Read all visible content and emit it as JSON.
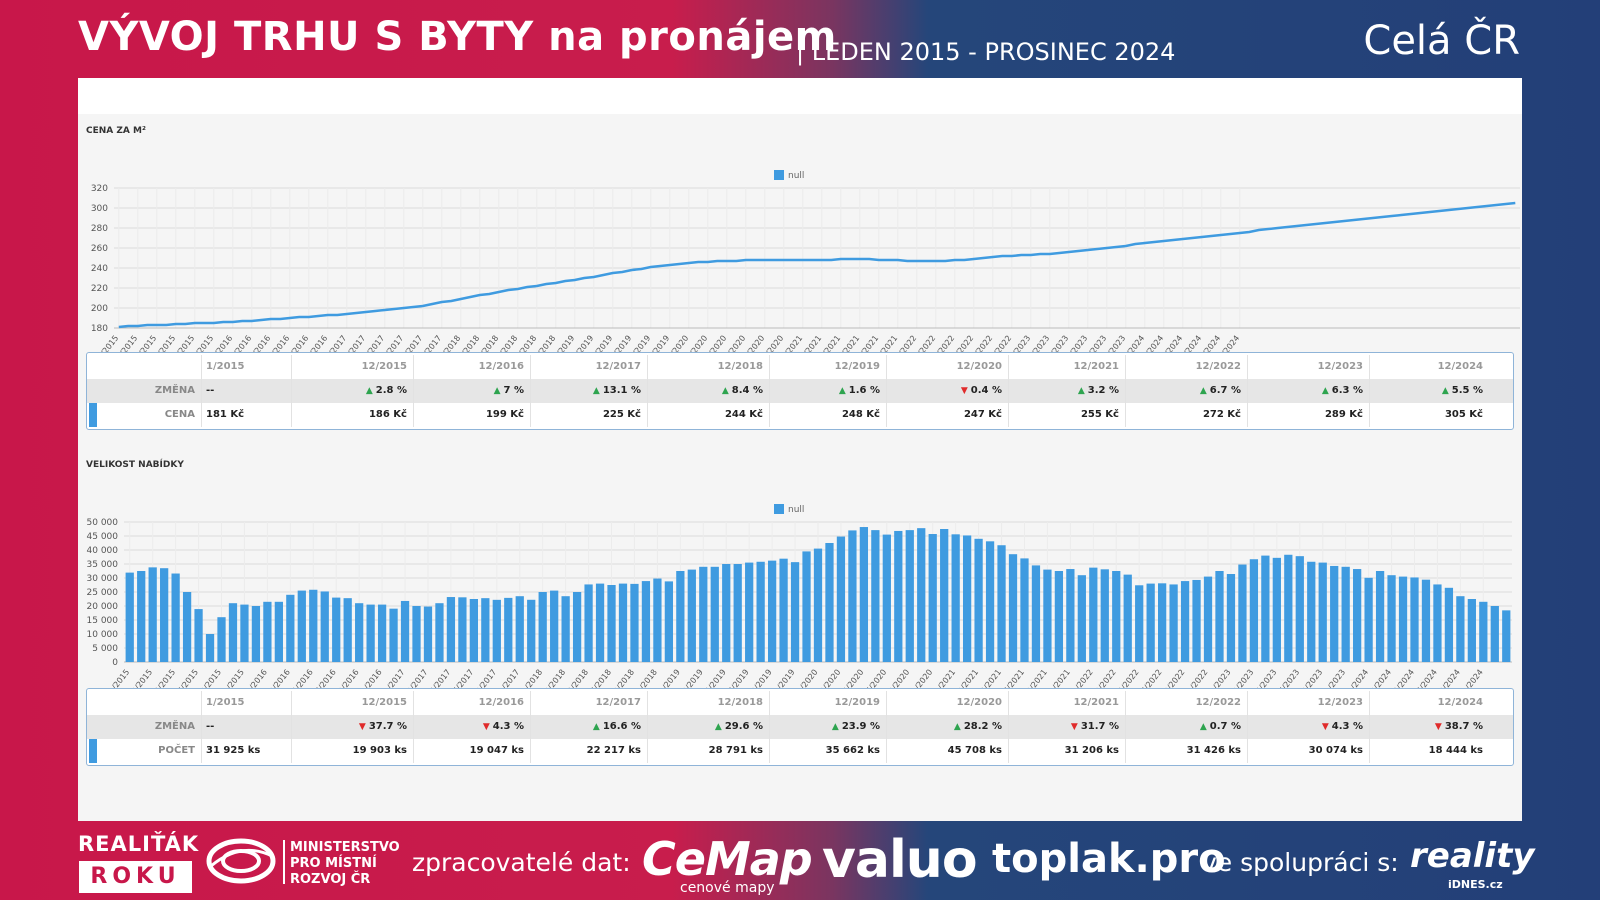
{
  "header": {
    "title": "VÝVOJ TRHU S BYTY na pronájem",
    "period": "| LEDEN 2015 - PROSINEC 2024",
    "region": "Celá ČR"
  },
  "price_section": {
    "title": "CENA ZA M²",
    "change_label": "ZMĚNA",
    "value_label": "CENA"
  },
  "offer_section": {
    "title": "VELIKOST NABÍDKY",
    "change_label": "ZMĚNA",
    "value_label": "POČET"
  },
  "chart_data": [
    {
      "type": "line",
      "title": "CENA ZA M²",
      "legend": "null",
      "series_color": "#3f9be0",
      "ylim": [
        180,
        320
      ],
      "yticks": [
        180,
        200,
        220,
        240,
        260,
        280,
        300,
        320
      ],
      "x_tick_labels": [
        "1/2015",
        "3/2015",
        "5/2015",
        "7/2015",
        "9/2015",
        "11/2015",
        "1/2016",
        "3/2016",
        "5/2016",
        "7/2016",
        "9/2016",
        "11/2016",
        "1/2017",
        "3/2017",
        "5/2017",
        "7/2017",
        "9/2017",
        "11/2017",
        "1/2018",
        "3/2018",
        "5/2018",
        "7/2018",
        "9/2018",
        "11/2018",
        "1/2019",
        "3/2019",
        "5/2019",
        "7/2019",
        "9/2019",
        "11/2019",
        "1/2020",
        "3/2020",
        "5/2020",
        "7/2020",
        "9/2020",
        "11/2020",
        "1/2021",
        "3/2021",
        "5/2021",
        "7/2021",
        "9/2021",
        "11/2021",
        "1/2022",
        "3/2022",
        "5/2022",
        "7/2022",
        "9/2022",
        "11/2022",
        "1/2023",
        "3/2023",
        "5/2023",
        "7/2023",
        "9/2023",
        "11/2023",
        "1/2024",
        "3/2024",
        "5/2024",
        "7/2024",
        "9/2024",
        "11/2024"
      ],
      "values": [
        181,
        182,
        182,
        183,
        183,
        183,
        184,
        184,
        185,
        185,
        185,
        186,
        186,
        187,
        187,
        188,
        189,
        189,
        190,
        191,
        191,
        192,
        193,
        193,
        194,
        195,
        196,
        197,
        198,
        199,
        200,
        201,
        202,
        204,
        206,
        207,
        209,
        211,
        213,
        214,
        216,
        218,
        219,
        221,
        222,
        224,
        225,
        227,
        228,
        230,
        231,
        233,
        235,
        236,
        238,
        239,
        241,
        242,
        243,
        244,
        245,
        246,
        246,
        247,
        247,
        247,
        248,
        248,
        248,
        248,
        248,
        248,
        248,
        248,
        248,
        248,
        249,
        249,
        249,
        249,
        248,
        248,
        248,
        247,
        247,
        247,
        247,
        247,
        248,
        248,
        249,
        250,
        251,
        252,
        252,
        253,
        253,
        254,
        254,
        255,
        256,
        257,
        258,
        259,
        260,
        261,
        262,
        264,
        265,
        266,
        267,
        268,
        269,
        270,
        271,
        272,
        273,
        274,
        275,
        276,
        278,
        279,
        280,
        281,
        282,
        283,
        284,
        285,
        286,
        287,
        288,
        289,
        290,
        291,
        292,
        293,
        294,
        295,
        296,
        297,
        298,
        299,
        300,
        301,
        302,
        303,
        304,
        305
      ]
    },
    {
      "type": "bar",
      "title": "VELIKOST NABÍDKY",
      "legend": "null",
      "series_color": "#3f9be0",
      "ylim": [
        0,
        50000
      ],
      "yticks": [
        "0",
        "5 000",
        "10 000",
        "15 000",
        "20 000",
        "25 000",
        "30 000",
        "35 000",
        "40 000",
        "45 000",
        "50 000"
      ],
      "x_tick_labels": [
        "1/2015",
        "3/2015",
        "5/2015",
        "7/2015",
        "9/2015",
        "11/2015",
        "1/2016",
        "3/2016",
        "5/2016",
        "7/2016",
        "9/2016",
        "11/2016",
        "1/2017",
        "3/2017",
        "5/2017",
        "7/2017",
        "9/2017",
        "11/2017",
        "1/2018",
        "3/2018",
        "5/2018",
        "7/2018",
        "9/2018",
        "11/2018",
        "1/2019",
        "3/2019",
        "5/2019",
        "7/2019",
        "9/2019",
        "11/2019",
        "1/2020",
        "3/2020",
        "5/2020",
        "7/2020",
        "9/2020",
        "11/2020",
        "1/2021",
        "3/2021",
        "5/2021",
        "7/2021",
        "9/2021",
        "11/2021",
        "1/2022",
        "3/2022",
        "5/2022",
        "7/2022",
        "9/2022",
        "11/2022",
        "1/2023",
        "3/2023",
        "5/2023",
        "7/2023",
        "9/2023",
        "11/2023",
        "1/2024",
        "3/2024",
        "5/2024",
        "7/2024",
        "9/2024",
        "11/2024"
      ],
      "values": [
        31925,
        32500,
        33800,
        33500,
        31600,
        25000,
        18900,
        10000,
        16000,
        21000,
        20500,
        20000,
        21500,
        21500,
        24000,
        25500,
        25800,
        25200,
        23000,
        22800,
        21000,
        20500,
        20500,
        19047,
        21800,
        20000,
        19800,
        21000,
        23200,
        23100,
        22500,
        22800,
        22200,
        22900,
        23500,
        22217,
        25000,
        25500,
        23500,
        25000,
        27700,
        28000,
        27500,
        28000,
        27900,
        28900,
        29800,
        28791,
        32500,
        33000,
        34000,
        34000,
        35000,
        35000,
        35500,
        35800,
        36200,
        36900,
        35662,
        39500,
        40500,
        42500,
        44800,
        47000,
        48200,
        47100,
        45500,
        46800,
        47100,
        47800,
        45708,
        47500,
        45600,
        45200,
        44000,
        43100,
        41700,
        38500,
        37000,
        34500,
        33000,
        32500,
        33200,
        31000,
        33700,
        33100,
        32500,
        31206,
        27400,
        28000,
        28100,
        27700,
        28900,
        29300,
        30500,
        32500,
        31426,
        34800,
        36700,
        38000,
        37200,
        38300,
        37800,
        35800,
        35500,
        34300,
        34000,
        33200,
        30074,
        32500,
        31000,
        30500,
        30200,
        29400,
        27700,
        26500,
        23500,
        22500,
        21500,
        20000,
        18444
      ]
    }
  ],
  "price_table": {
    "headers": [
      "1/2015",
      "12/2015",
      "12/2016",
      "12/2017",
      "12/2018",
      "12/2019",
      "12/2020",
      "12/2021",
      "12/2022",
      "12/2023",
      "12/2024"
    ],
    "changes": [
      {
        "dir": "none",
        "text": "--"
      },
      {
        "dir": "up",
        "text": "2.8 %"
      },
      {
        "dir": "up",
        "text": "7 %"
      },
      {
        "dir": "up",
        "text": "13.1 %"
      },
      {
        "dir": "up",
        "text": "8.4 %"
      },
      {
        "dir": "up",
        "text": "1.6 %"
      },
      {
        "dir": "down",
        "text": "0.4 %"
      },
      {
        "dir": "up",
        "text": "3.2 %"
      },
      {
        "dir": "up",
        "text": "6.7 %"
      },
      {
        "dir": "up",
        "text": "6.3 %"
      },
      {
        "dir": "up",
        "text": "5.5 %"
      }
    ],
    "values": [
      "181 Kč",
      "186 Kč",
      "199 Kč",
      "225 Kč",
      "244 Kč",
      "248 Kč",
      "247 Kč",
      "255 Kč",
      "272 Kč",
      "289 Kč",
      "305 Kč"
    ]
  },
  "offer_table": {
    "headers": [
      "1/2015",
      "12/2015",
      "12/2016",
      "12/2017",
      "12/2018",
      "12/2019",
      "12/2020",
      "12/2021",
      "12/2022",
      "12/2023",
      "12/2024"
    ],
    "changes": [
      {
        "dir": "none",
        "text": "--"
      },
      {
        "dir": "down",
        "text": "37.7 %"
      },
      {
        "dir": "down",
        "text": "4.3 %"
      },
      {
        "dir": "up",
        "text": "16.6 %"
      },
      {
        "dir": "up",
        "text": "29.6 %"
      },
      {
        "dir": "up",
        "text": "23.9 %"
      },
      {
        "dir": "up",
        "text": "28.2 %"
      },
      {
        "dir": "down",
        "text": "31.7 %"
      },
      {
        "dir": "up",
        "text": "0.7 %"
      },
      {
        "dir": "down",
        "text": "4.3 %"
      },
      {
        "dir": "down",
        "text": "38.7 %"
      }
    ],
    "values": [
      "31 925 ks",
      "19 903 ks",
      "19 047 ks",
      "22 217 ks",
      "28 791 ks",
      "35 662 ks",
      "45 708 ks",
      "31 206 ks",
      "31 426 ks",
      "30 074 ks",
      "18 444 ks"
    ]
  },
  "footer": {
    "award_line1": "REALIŤÁK",
    "award_line2": "ROKU",
    "ministry": [
      "MINISTERSTVO",
      "PRO MÍSTNÍ",
      "ROZVOJ ČR"
    ],
    "processors_label": "zpracovatelé dat:",
    "cemap": "CeMap",
    "cemap_sub": "cenové mapy",
    "valuo": "valuo",
    "toplak": "toplak.pro",
    "cooperation_label": "ve spolupráci s:",
    "reality": "reality",
    "idnes": "iDNES.cz"
  }
}
